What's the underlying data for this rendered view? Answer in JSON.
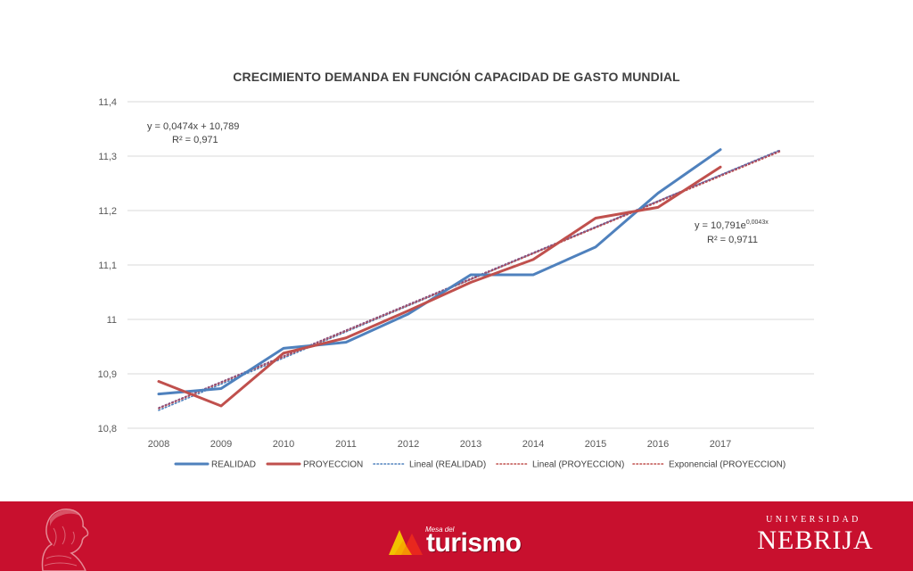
{
  "chart_data": {
    "type": "line",
    "title": "CRECIMIENTO DEMANDA EN FUNCIÓN CAPACIDAD DE GASTO MUNDIAL",
    "xlabel": "",
    "ylabel": "",
    "categories": [
      "2008",
      "2009",
      "2010",
      "2011",
      "2012",
      "2013",
      "2014",
      "2015",
      "2016",
      "2017"
    ],
    "y_ticks": [
      "11,4",
      "11,3",
      "11,2",
      "11,1",
      "11",
      "10,9",
      "10,8"
    ],
    "ylim": [
      10.8,
      11.4
    ],
    "grid": true,
    "legend_position": "bottom",
    "series": [
      {
        "name": "REALIDAD",
        "color": "#4f81bd",
        "values": [
          10.863,
          10.873,
          10.947,
          10.958,
          11.01,
          11.082,
          11.082,
          11.133,
          11.232,
          11.312
        ]
      },
      {
        "name": "PROYECCION",
        "color": "#c0504d",
        "values": [
          10.886,
          10.841,
          10.938,
          10.966,
          11.016,
          11.068,
          11.11,
          11.186,
          11.206,
          11.28
        ]
      }
    ],
    "trendlines": [
      {
        "name": "Lineal (REALIDAD)",
        "color": "#4f81bd",
        "kind": "linear",
        "equation": "y = 0,0474x + 10,789",
        "r2": "R² = 0,971"
      },
      {
        "name": "Lineal (PROYECCION)",
        "color": "#c0504d",
        "kind": "linear"
      },
      {
        "name": "Exponencial (PROYECCION)",
        "color": "#c0504d",
        "kind": "exponential",
        "equation_base": "y = 10,791e",
        "equation_exp": "0,0043x",
        "r2": "R² = 0,9711"
      }
    ]
  },
  "footer": {
    "background": "#c8102e",
    "mesa_small": "Mesa del",
    "mesa_big": "turismo",
    "uni_small": "UNIVERSIDAD",
    "uni_big": "NEBRIJA"
  }
}
